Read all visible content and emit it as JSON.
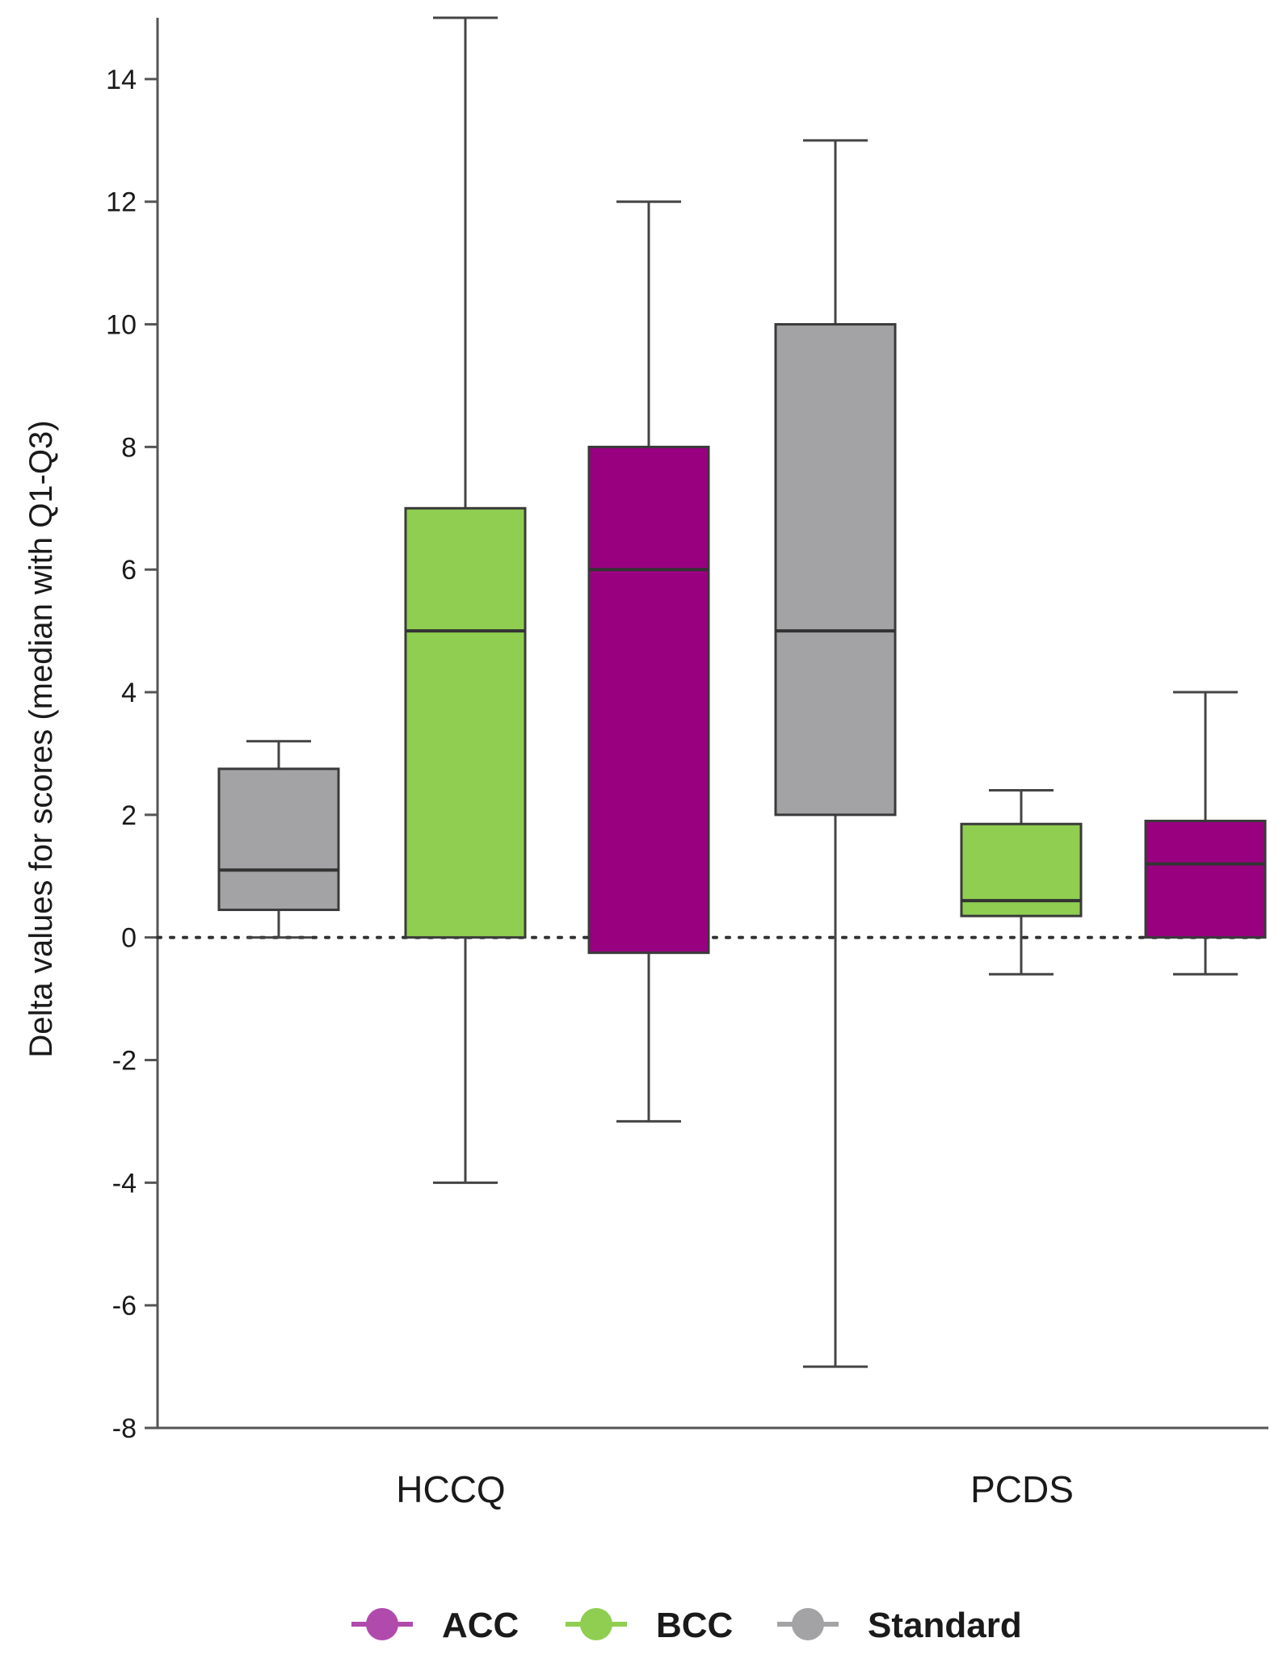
{
  "chart_data": {
    "type": "box",
    "title": "",
    "xlabel": "",
    "ylabel": "Delta values for scores (median with Q1-Q3)",
    "ylim": [
      -8,
      15
    ],
    "yticks": [
      -8,
      -6,
      -4,
      -2,
      0,
      2,
      4,
      6,
      8,
      10,
      12,
      14
    ],
    "ytick_labels": [
      "-8",
      "-6",
      "-4",
      "-2",
      "0",
      "2",
      "4",
      "6",
      "8",
      "10",
      "12",
      "14"
    ],
    "reference_line": 0,
    "categories": [
      "HCCQ",
      "PCDS"
    ],
    "series": [
      {
        "name": "Standard",
        "color": "#a3a3a5",
        "boxes": [
          {
            "category": "HCCQ",
            "min": 0,
            "q1": 0.45,
            "median": 1.1,
            "q3": 2.75,
            "max": 3.2
          },
          {
            "category": "PCDS",
            "min": -7,
            "q1": 2,
            "median": 5,
            "q3": 10,
            "max": 13
          }
        ]
      },
      {
        "name": "BCC",
        "color": "#8fce50",
        "boxes": [
          {
            "category": "HCCQ",
            "min": -4,
            "q1": 0,
            "median": 5,
            "q3": 7,
            "max": 15
          },
          {
            "category": "PCDS",
            "min": -0.6,
            "q1": 0.35,
            "median": 0.6,
            "q3": 1.85,
            "max": 2.4
          }
        ]
      },
      {
        "name": "ACC",
        "color": "#990080",
        "boxes": [
          {
            "category": "HCCQ",
            "min": -3,
            "q1": -0.25,
            "median": 6,
            "q3": 8,
            "max": 12
          },
          {
            "category": "PCDS",
            "min": -0.6,
            "q1": 0,
            "median": 1.2,
            "q3": 1.9,
            "max": 4
          }
        ]
      }
    ],
    "legend": {
      "position": "bottom",
      "items": [
        {
          "label": "ACC",
          "color": "#b04aad"
        },
        {
          "label": "BCC",
          "color": "#8fce50"
        },
        {
          "label": "Standard",
          "color": "#a3a3a5"
        }
      ]
    }
  }
}
